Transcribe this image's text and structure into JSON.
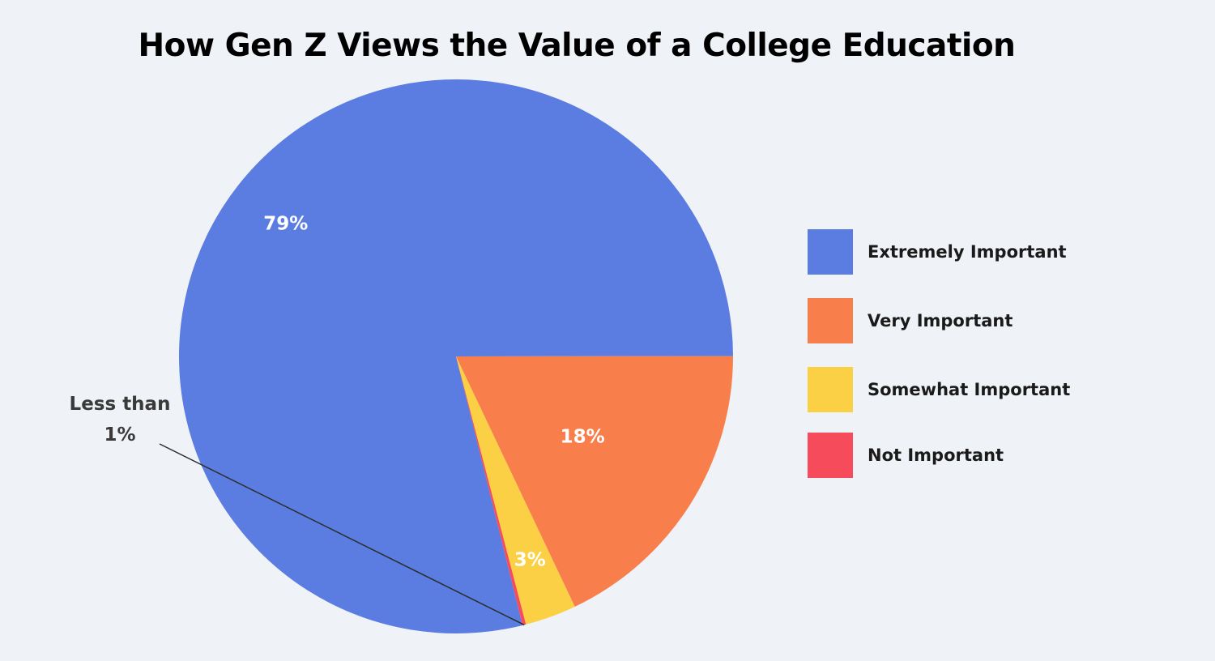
{
  "chart_data": {
    "type": "pie",
    "title": "How Gen Z Views the Value of a College Education",
    "slices": [
      {
        "name": "Extremely Important",
        "value": 79,
        "label": "79%",
        "color": "#5b7de1"
      },
      {
        "name": "Very Important",
        "value": 18,
        "label": "18%",
        "color": "#f87f4c"
      },
      {
        "name": "Somewhat Important",
        "value": 3,
        "label": "3%",
        "color": "#fcd044"
      },
      {
        "name": "Not Important",
        "value": 0.2,
        "label": "Less than 1%",
        "color": "#f64b5b"
      }
    ],
    "callout": {
      "line1": "Less than",
      "line2": "1%"
    },
    "legend_position": "right"
  }
}
